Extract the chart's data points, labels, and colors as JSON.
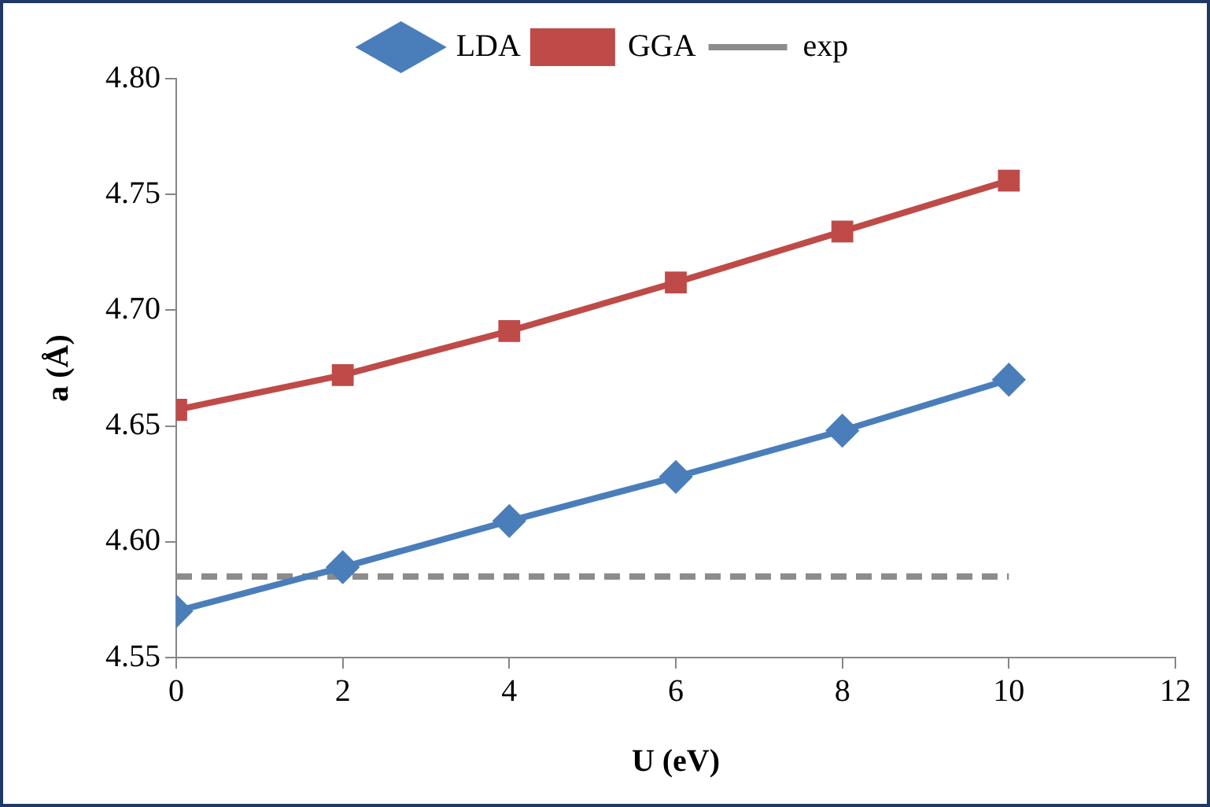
{
  "chart_data": {
    "type": "line",
    "xlabel": "U (eV)",
    "ylabel": "a (Å)",
    "xlim": [
      0,
      12
    ],
    "xticks": [
      0,
      2,
      4,
      6,
      8,
      10,
      12
    ],
    "ylim": [
      4.55,
      4.8
    ],
    "yticks": [
      {
        "value": 4.55,
        "label": "4.55"
      },
      {
        "value": 4.6,
        "label": "4.60"
      },
      {
        "value": 4.65,
        "label": "4.65"
      },
      {
        "value": 4.7,
        "label": "4.70"
      },
      {
        "value": 4.75,
        "label": "4.75"
      },
      {
        "value": 4.8,
        "label": "4.80"
      }
    ],
    "grid": false,
    "legend": "top",
    "series": [
      {
        "name": "LDA",
        "color": "#4a7ebb",
        "marker": "diamond",
        "x": [
          0,
          2,
          4,
          6,
          8,
          10
        ],
        "values": [
          4.57,
          4.589,
          4.609,
          4.628,
          4.648,
          4.67
        ]
      },
      {
        "name": "GGA",
        "color": "#be4b48",
        "marker": "square",
        "x": [
          0,
          2,
          4,
          6,
          8,
          10
        ],
        "values": [
          4.657,
          4.672,
          4.691,
          4.712,
          4.734,
          4.756
        ]
      },
      {
        "name": "exp",
        "color": "#8c8c8c",
        "marker": "none",
        "line_style": "dashed",
        "x": [
          0,
          10
        ],
        "values": [
          4.585,
          4.585
        ]
      }
    ]
  }
}
